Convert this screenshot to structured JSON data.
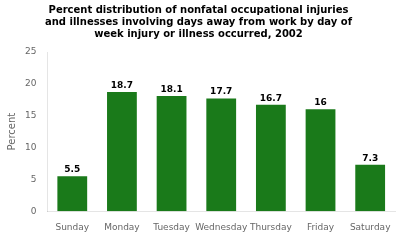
{
  "chart_data": {
    "type": "bar",
    "title": "Percent distribution of nonfatal occupational injuries\nand illnesses involving days away from work by day of\nweek injury or illness occurred, 2002",
    "ylabel": "Percent",
    "categories": [
      "Sunday",
      "Monday",
      "Tuesday",
      "Wednesday",
      "Thursday",
      "Friday",
      "Saturday"
    ],
    "values": [
      5.5,
      18.7,
      18.1,
      17.7,
      16.7,
      16.0,
      7.3
    ],
    "color": "#1a7a1a",
    "ylim": [
      0,
      25
    ],
    "yticks": [
      0,
      5,
      10,
      15,
      20,
      25
    ],
    "grid": false,
    "data_labels": true
  }
}
